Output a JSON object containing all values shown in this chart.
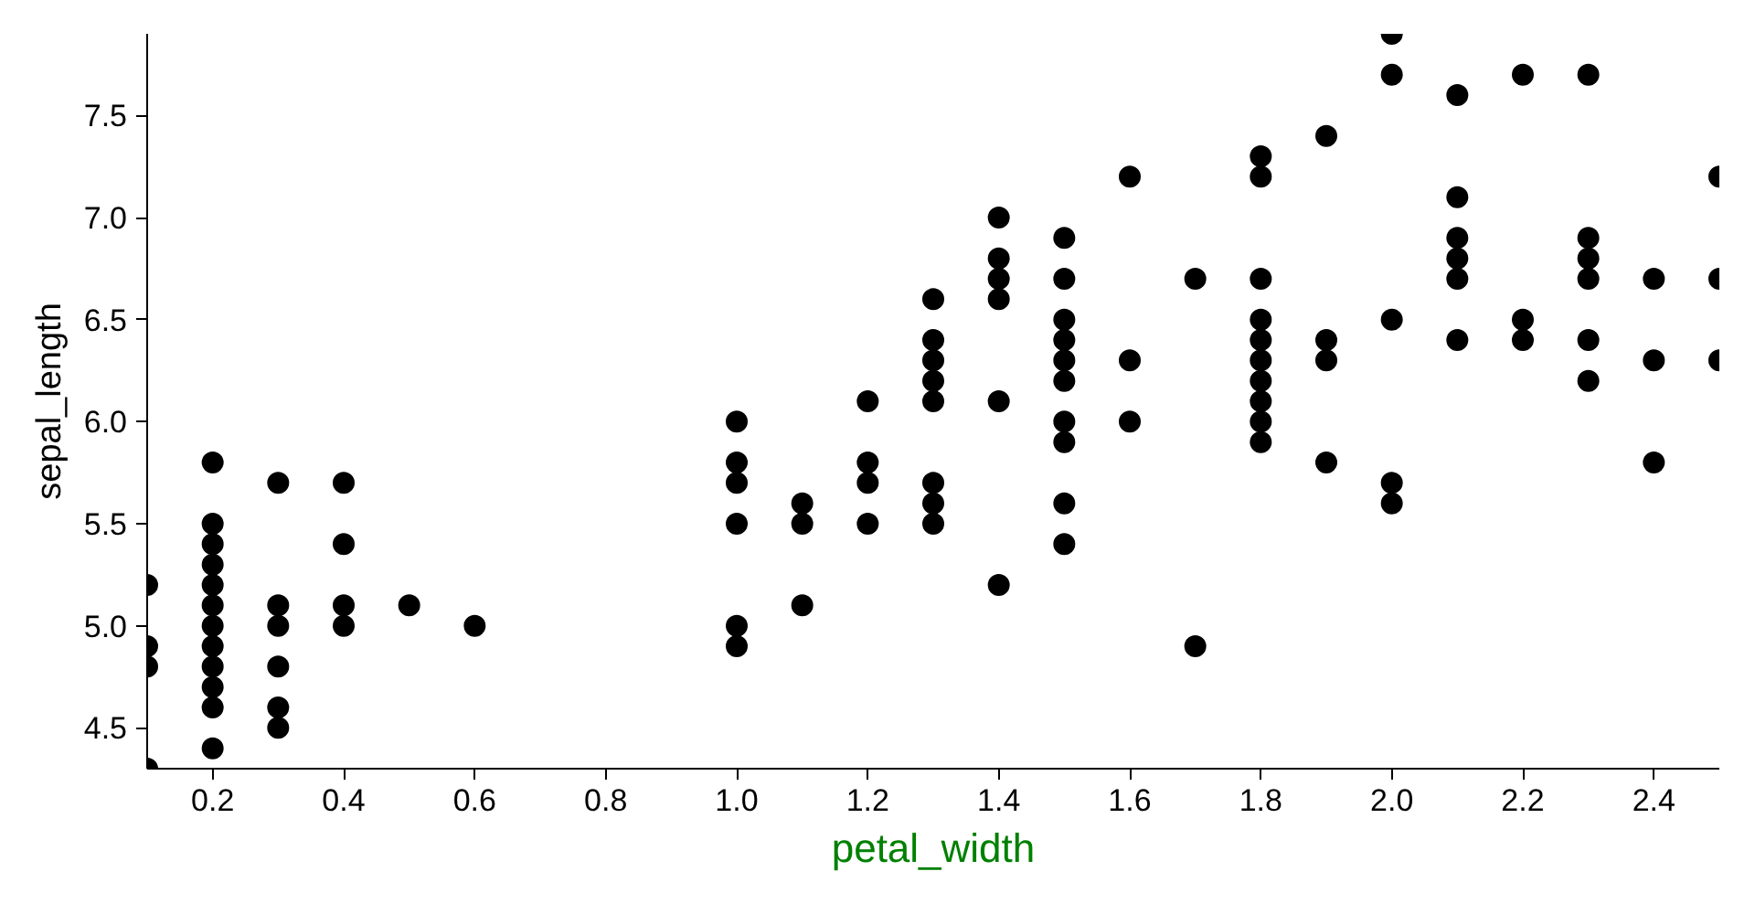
{
  "chart_data": {
    "type": "scatter",
    "xlabel": "petal_width",
    "ylabel": "sepal_length",
    "color": "#000000",
    "marker": "circle",
    "grid": false,
    "x": [
      0.1,
      0.1,
      0.1,
      0.1,
      0.2,
      0.2,
      0.2,
      0.2,
      0.2,
      0.2,
      0.2,
      0.2,
      0.2,
      0.2,
      0.2,
      0.2,
      0.3,
      0.3,
      0.3,
      0.3,
      0.3,
      0.3,
      0.4,
      0.4,
      0.4,
      0.4,
      0.5,
      0.6,
      1.0,
      1.0,
      1.0,
      1.0,
      1.0,
      1.0,
      1.1,
      1.1,
      1.1,
      1.2,
      1.2,
      1.2,
      1.2,
      1.3,
      1.3,
      1.3,
      1.3,
      1.3,
      1.3,
      1.3,
      1.3,
      1.4,
      1.4,
      1.4,
      1.4,
      1.4,
      1.4,
      1.5,
      1.5,
      1.5,
      1.5,
      1.5,
      1.5,
      1.5,
      1.5,
      1.5,
      1.5,
      1.6,
      1.6,
      1.6,
      1.7,
      1.7,
      1.8,
      1.8,
      1.8,
      1.8,
      1.8,
      1.8,
      1.8,
      1.8,
      1.8,
      1.8,
      1.9,
      1.9,
      1.9,
      1.9,
      2.0,
      2.0,
      2.0,
      2.0,
      2.0,
      2.1,
      2.1,
      2.1,
      2.1,
      2.1,
      2.1,
      2.2,
      2.2,
      2.2,
      2.3,
      2.3,
      2.3,
      2.3,
      2.3,
      2.3,
      2.4,
      2.4,
      2.4,
      2.5,
      2.5,
      2.5
    ],
    "values": [
      4.3,
      4.8,
      4.9,
      5.2,
      4.4,
      4.6,
      4.7,
      4.8,
      4.9,
      5.0,
      5.1,
      5.2,
      5.3,
      5.4,
      5.5,
      5.8,
      4.5,
      4.6,
      4.8,
      5.0,
      5.1,
      5.7,
      5.0,
      5.1,
      5.4,
      5.7,
      5.1,
      5.0,
      4.9,
      5.0,
      5.5,
      5.7,
      5.8,
      6.0,
      5.1,
      5.5,
      5.6,
      5.5,
      5.7,
      5.8,
      6.1,
      5.5,
      5.6,
      5.7,
      6.1,
      6.2,
      6.3,
      6.4,
      6.6,
      5.2,
      6.1,
      6.6,
      6.7,
      6.8,
      7.0,
      5.4,
      5.6,
      5.9,
      6.0,
      6.2,
      6.3,
      6.4,
      6.5,
      6.7,
      6.9,
      6.0,
      6.3,
      7.2,
      4.9,
      6.7,
      5.9,
      6.0,
      6.1,
      6.2,
      6.3,
      6.4,
      6.5,
      6.7,
      7.2,
      7.3,
      5.8,
      6.3,
      6.4,
      7.4,
      5.6,
      5.7,
      6.5,
      7.7,
      7.9,
      6.4,
      6.7,
      6.8,
      6.9,
      7.1,
      7.6,
      6.4,
      6.5,
      7.7,
      6.2,
      6.4,
      6.7,
      6.8,
      6.9,
      7.7,
      5.8,
      6.3,
      6.7,
      6.3,
      6.7,
      7.2
    ],
    "xlim": [
      0.1,
      2.5
    ],
    "ylim": [
      4.3,
      7.9
    ],
    "xticks": [
      0.2,
      0.4,
      0.6,
      0.8,
      {
        "value": 1.0,
        "label": "1.0"
      },
      1.2,
      1.4,
      1.6,
      1.8,
      {
        "value": 2.0,
        "label": "2.0"
      },
      2.2,
      2.4
    ],
    "yticks": [
      4.5,
      {
        "value": 5.0,
        "label": "5.0"
      },
      5.5,
      {
        "value": 6.0,
        "label": "6.0"
      },
      6.5,
      {
        "value": 7.0,
        "label": "7.0"
      },
      7.5
    ]
  }
}
